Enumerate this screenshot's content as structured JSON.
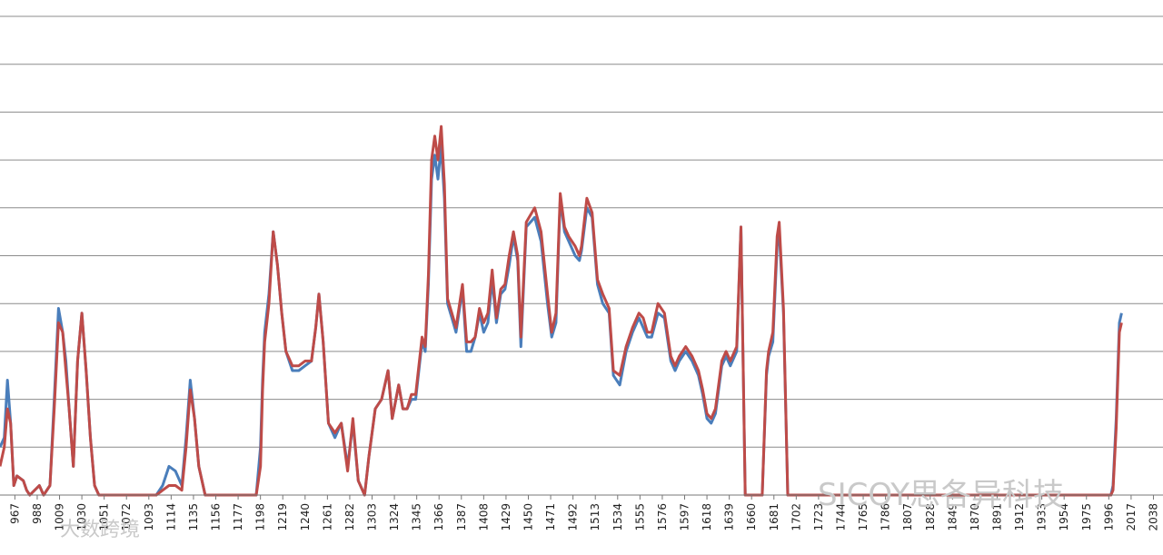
{
  "chart_data": {
    "type": "line",
    "title": "",
    "xlabel": "",
    "ylabel": "",
    "grid": true,
    "y_gridlines": 10,
    "x_visible_range": [
      953,
      2047
    ],
    "x_ticks": [
      967,
      988,
      1009,
      1030,
      1051,
      1072,
      1093,
      1114,
      1135,
      1156,
      1177,
      1198,
      1219,
      1240,
      1261,
      1282,
      1303,
      1324,
      1345,
      1366,
      1387,
      1408,
      1429,
      1450,
      1471,
      1492,
      1513,
      1534,
      1555,
      1576,
      1597,
      1618,
      1639,
      1660,
      1681,
      1702,
      1723,
      1744,
      1765,
      1786,
      1807,
      1828,
      1849,
      1870,
      1891,
      1912,
      1933,
      1954,
      1975,
      1996,
      2017,
      2038
    ],
    "series": [
      {
        "color": "#4a7ebb",
        "points": [
          [
            953,
            1.0
          ],
          [
            957,
            1.2
          ],
          [
            960,
            2.4
          ],
          [
            963,
            1.5
          ],
          [
            966,
            0.2
          ],
          [
            969,
            0.4
          ],
          [
            975,
            0.3
          ],
          [
            978,
            0.1
          ],
          [
            981,
            0.0
          ],
          [
            990,
            0.2
          ],
          [
            994,
            0.0
          ],
          [
            1000,
            0.2
          ],
          [
            1004,
            2.0
          ],
          [
            1008,
            3.9
          ],
          [
            1012,
            3.4
          ],
          [
            1015,
            2.8
          ],
          [
            1018,
            1.8
          ],
          [
            1022,
            0.6
          ],
          [
            1026,
            2.8
          ],
          [
            1030,
            3.8
          ],
          [
            1034,
            2.6
          ],
          [
            1038,
            1.2
          ],
          [
            1042,
            0.2
          ],
          [
            1046,
            0.0
          ],
          [
            1100,
            0.0
          ],
          [
            1106,
            0.2
          ],
          [
            1112,
            0.6
          ],
          [
            1118,
            0.5
          ],
          [
            1124,
            0.2
          ],
          [
            1128,
            1.2
          ],
          [
            1132,
            2.4
          ],
          [
            1136,
            1.6
          ],
          [
            1140,
            0.6
          ],
          [
            1146,
            0.0
          ],
          [
            1168,
            0.0
          ],
          [
            1194,
            0.0
          ],
          [
            1198,
            1.0
          ],
          [
            1200,
            2.4
          ],
          [
            1202,
            3.4
          ],
          [
            1206,
            4.2
          ],
          [
            1210,
            5.5
          ],
          [
            1214,
            4.8
          ],
          [
            1218,
            3.8
          ],
          [
            1222,
            3.0
          ],
          [
            1228,
            2.6
          ],
          [
            1234,
            2.6
          ],
          [
            1240,
            2.7
          ],
          [
            1246,
            2.8
          ],
          [
            1250,
            3.5
          ],
          [
            1253,
            4.2
          ],
          [
            1257,
            3.2
          ],
          [
            1262,
            1.5
          ],
          [
            1268,
            1.2
          ],
          [
            1274,
            1.5
          ],
          [
            1280,
            0.6
          ],
          [
            1285,
            1.5
          ],
          [
            1290,
            0.3
          ],
          [
            1296,
            0.0
          ],
          [
            1300,
            0.8
          ],
          [
            1306,
            1.8
          ],
          [
            1312,
            2.0
          ],
          [
            1318,
            2.6
          ],
          [
            1322,
            1.6
          ],
          [
            1328,
            2.3
          ],
          [
            1332,
            1.8
          ],
          [
            1336,
            1.8
          ],
          [
            1340,
            2.0
          ],
          [
            1344,
            2.0
          ],
          [
            1350,
            3.2
          ],
          [
            1353,
            3.0
          ],
          [
            1356,
            4.4
          ],
          [
            1359,
            6.6
          ],
          [
            1362,
            7.1
          ],
          [
            1365,
            6.6
          ],
          [
            1368,
            7.3
          ],
          [
            1371,
            6.2
          ],
          [
            1374,
            4.0
          ],
          [
            1378,
            3.7
          ],
          [
            1382,
            3.4
          ],
          [
            1388,
            4.3
          ],
          [
            1392,
            3.0
          ],
          [
            1396,
            3.0
          ],
          [
            1400,
            3.3
          ],
          [
            1404,
            3.8
          ],
          [
            1408,
            3.4
          ],
          [
            1412,
            3.6
          ],
          [
            1416,
            4.5
          ],
          [
            1420,
            3.6
          ],
          [
            1424,
            4.2
          ],
          [
            1428,
            4.3
          ],
          [
            1432,
            4.8
          ],
          [
            1436,
            5.4
          ],
          [
            1440,
            4.9
          ],
          [
            1443,
            3.1
          ],
          [
            1448,
            5.6
          ],
          [
            1456,
            5.8
          ],
          [
            1462,
            5.3
          ],
          [
            1468,
            4.0
          ],
          [
            1472,
            3.3
          ],
          [
            1476,
            3.6
          ],
          [
            1480,
            6.2
          ],
          [
            1484,
            5.5
          ],
          [
            1488,
            5.3
          ],
          [
            1494,
            5.0
          ],
          [
            1498,
            4.9
          ],
          [
            1500,
            5.1
          ],
          [
            1505,
            6.0
          ],
          [
            1510,
            5.8
          ],
          [
            1515,
            4.4
          ],
          [
            1520,
            4.0
          ],
          [
            1526,
            3.8
          ],
          [
            1530,
            2.5
          ],
          [
            1536,
            2.3
          ],
          [
            1542,
            3.0
          ],
          [
            1548,
            3.4
          ],
          [
            1554,
            3.7
          ],
          [
            1558,
            3.5
          ],
          [
            1562,
            3.3
          ],
          [
            1566,
            3.3
          ],
          [
            1572,
            3.8
          ],
          [
            1578,
            3.7
          ],
          [
            1584,
            2.8
          ],
          [
            1588,
            2.6
          ],
          [
            1592,
            2.8
          ],
          [
            1598,
            3.0
          ],
          [
            1604,
            2.8
          ],
          [
            1610,
            2.5
          ],
          [
            1614,
            2.1
          ],
          [
            1618,
            1.6
          ],
          [
            1622,
            1.5
          ],
          [
            1626,
            1.7
          ],
          [
            1632,
            2.7
          ],
          [
            1636,
            2.9
          ],
          [
            1640,
            2.7
          ],
          [
            1646,
            3.0
          ],
          [
            1650,
            5.6
          ],
          [
            1654,
            0.0
          ],
          [
            1670,
            0.0
          ],
          [
            1674,
            2.5
          ],
          [
            1676,
            2.9
          ],
          [
            1680,
            3.2
          ],
          [
            1684,
            5.2
          ],
          [
            1686,
            5.5
          ],
          [
            1690,
            3.8
          ],
          [
            1694,
            0.0
          ],
          [
            1998,
            0.0
          ],
          [
            2000,
            0.2
          ],
          [
            2003,
            1.6
          ],
          [
            2006,
            3.6
          ],
          [
            2008,
            3.8
          ]
        ]
      },
      {
        "color": "#be4b48",
        "points": [
          [
            953,
            0.6
          ],
          [
            957,
            1.0
          ],
          [
            960,
            1.8
          ],
          [
            963,
            1.5
          ],
          [
            966,
            0.2
          ],
          [
            969,
            0.4
          ],
          [
            975,
            0.3
          ],
          [
            978,
            0.1
          ],
          [
            981,
            0.0
          ],
          [
            990,
            0.2
          ],
          [
            994,
            0.0
          ],
          [
            1000,
            0.2
          ],
          [
            1004,
            1.8
          ],
          [
            1008,
            3.6
          ],
          [
            1012,
            3.4
          ],
          [
            1015,
            2.6
          ],
          [
            1018,
            1.8
          ],
          [
            1022,
            0.6
          ],
          [
            1026,
            2.8
          ],
          [
            1030,
            3.8
          ],
          [
            1034,
            2.6
          ],
          [
            1038,
            1.2
          ],
          [
            1042,
            0.2
          ],
          [
            1046,
            0.0
          ],
          [
            1100,
            0.0
          ],
          [
            1106,
            0.1
          ],
          [
            1112,
            0.2
          ],
          [
            1118,
            0.2
          ],
          [
            1124,
            0.1
          ],
          [
            1128,
            1.0
          ],
          [
            1132,
            2.2
          ],
          [
            1136,
            1.6
          ],
          [
            1140,
            0.6
          ],
          [
            1146,
            0.0
          ],
          [
            1168,
            0.0
          ],
          [
            1194,
            0.0
          ],
          [
            1198,
            0.6
          ],
          [
            1200,
            2.2
          ],
          [
            1202,
            3.2
          ],
          [
            1206,
            4.0
          ],
          [
            1210,
            5.5
          ],
          [
            1214,
            4.8
          ],
          [
            1218,
            3.8
          ],
          [
            1222,
            3.0
          ],
          [
            1228,
            2.7
          ],
          [
            1234,
            2.7
          ],
          [
            1240,
            2.8
          ],
          [
            1246,
            2.8
          ],
          [
            1250,
            3.5
          ],
          [
            1253,
            4.2
          ],
          [
            1257,
            3.2
          ],
          [
            1262,
            1.5
          ],
          [
            1268,
            1.3
          ],
          [
            1274,
            1.5
          ],
          [
            1280,
            0.5
          ],
          [
            1285,
            1.6
          ],
          [
            1290,
            0.3
          ],
          [
            1296,
            0.0
          ],
          [
            1300,
            0.8
          ],
          [
            1306,
            1.8
          ],
          [
            1312,
            2.0
          ],
          [
            1318,
            2.6
          ],
          [
            1322,
            1.6
          ],
          [
            1328,
            2.3
          ],
          [
            1332,
            1.8
          ],
          [
            1336,
            1.8
          ],
          [
            1340,
            2.1
          ],
          [
            1344,
            2.1
          ],
          [
            1350,
            3.3
          ],
          [
            1353,
            3.1
          ],
          [
            1356,
            4.6
          ],
          [
            1359,
            7.0
          ],
          [
            1362,
            7.5
          ],
          [
            1365,
            7.0
          ],
          [
            1368,
            7.7
          ],
          [
            1371,
            6.5
          ],
          [
            1374,
            4.1
          ],
          [
            1378,
            3.8
          ],
          [
            1382,
            3.5
          ],
          [
            1388,
            4.4
          ],
          [
            1392,
            3.2
          ],
          [
            1396,
            3.2
          ],
          [
            1400,
            3.3
          ],
          [
            1404,
            3.9
          ],
          [
            1408,
            3.6
          ],
          [
            1412,
            3.8
          ],
          [
            1416,
            4.7
          ],
          [
            1420,
            3.7
          ],
          [
            1424,
            4.3
          ],
          [
            1428,
            4.4
          ],
          [
            1432,
            5.0
          ],
          [
            1436,
            5.5
          ],
          [
            1440,
            5.0
          ],
          [
            1443,
            3.3
          ],
          [
            1448,
            5.7
          ],
          [
            1456,
            6.0
          ],
          [
            1462,
            5.5
          ],
          [
            1468,
            4.2
          ],
          [
            1472,
            3.4
          ],
          [
            1476,
            3.8
          ],
          [
            1480,
            6.3
          ],
          [
            1484,
            5.6
          ],
          [
            1488,
            5.4
          ],
          [
            1494,
            5.2
          ],
          [
            1498,
            5.0
          ],
          [
            1500,
            5.2
          ],
          [
            1505,
            6.2
          ],
          [
            1510,
            5.9
          ],
          [
            1515,
            4.5
          ],
          [
            1520,
            4.2
          ],
          [
            1526,
            3.9
          ],
          [
            1530,
            2.6
          ],
          [
            1536,
            2.5
          ],
          [
            1542,
            3.1
          ],
          [
            1548,
            3.5
          ],
          [
            1554,
            3.8
          ],
          [
            1558,
            3.7
          ],
          [
            1562,
            3.4
          ],
          [
            1566,
            3.4
          ],
          [
            1572,
            4.0
          ],
          [
            1578,
            3.8
          ],
          [
            1584,
            2.9
          ],
          [
            1588,
            2.7
          ],
          [
            1592,
            2.9
          ],
          [
            1598,
            3.1
          ],
          [
            1604,
            2.9
          ],
          [
            1610,
            2.6
          ],
          [
            1614,
            2.2
          ],
          [
            1618,
            1.7
          ],
          [
            1622,
            1.6
          ],
          [
            1626,
            1.8
          ],
          [
            1632,
            2.8
          ],
          [
            1636,
            3.0
          ],
          [
            1640,
            2.8
          ],
          [
            1646,
            3.1
          ],
          [
            1650,
            5.6
          ],
          [
            1654,
            0.0
          ],
          [
            1670,
            0.0
          ],
          [
            1674,
            2.6
          ],
          [
            1676,
            3.0
          ],
          [
            1680,
            3.4
          ],
          [
            1684,
            5.4
          ],
          [
            1686,
            5.7
          ],
          [
            1690,
            3.9
          ],
          [
            1694,
            0.0
          ],
          [
            1998,
            0.0
          ],
          [
            2000,
            0.1
          ],
          [
            2003,
            1.4
          ],
          [
            2006,
            3.4
          ],
          [
            2008,
            3.6
          ]
        ]
      }
    ]
  },
  "watermark": {
    "brand": "SICOY思各异科技",
    "corner": "大数跨境"
  }
}
